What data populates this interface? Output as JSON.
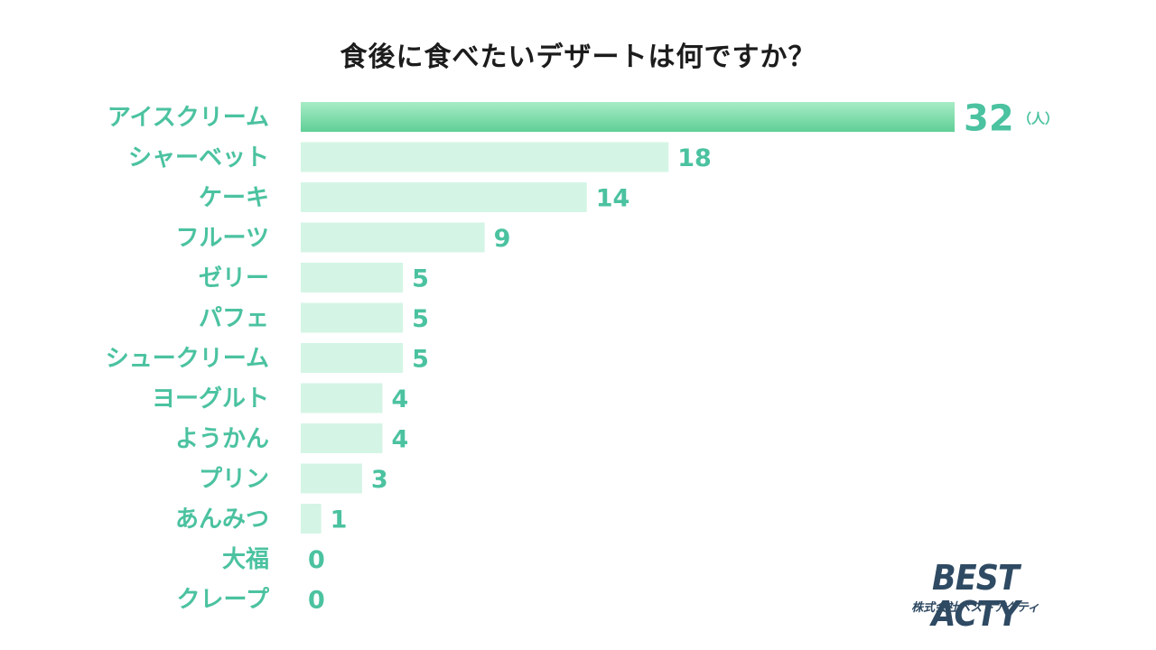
{
  "colors": {
    "label": "#4bc2a0",
    "bar": "#d4f5e5",
    "bar_top_from": "#a8ecc6",
    "bar_top_to": "#5fcf96",
    "title": "#1c1c1c",
    "logo": "#2f4a63"
  },
  "chart_data": {
    "type": "bar",
    "orientation": "horizontal",
    "title": "食後に食べたいデザートは何ですか？",
    "unit": "（人）",
    "categories": [
      "アイスクリーム",
      "シャーベット",
      "ケーキ",
      "フルーツ",
      "ゼリー",
      "パフェ",
      "シュークリーム",
      "ヨーグルト",
      "ようかん",
      "プリン",
      "あんみつ",
      "大福",
      "クレープ"
    ],
    "values": [
      32,
      18,
      14,
      9,
      5,
      5,
      5,
      4,
      4,
      3,
      1,
      0,
      0
    ],
    "xlim": [
      0,
      32
    ],
    "grid": false,
    "legend": "none"
  },
  "logo": {
    "name": "BEST ACTY",
    "company": "株式会社ベストアクティ"
  }
}
